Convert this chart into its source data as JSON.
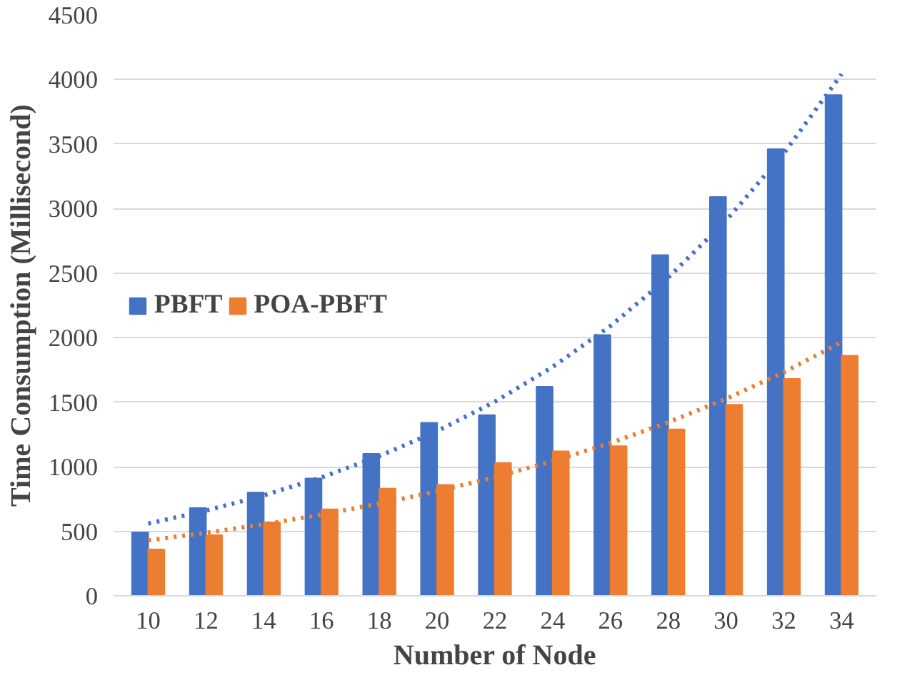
{
  "chart_data": {
    "type": "bar",
    "xlabel": "Number of Node",
    "ylabel": "Time Consumption (Millisecond)",
    "categories": [
      "10",
      "12",
      "14",
      "16",
      "18",
      "20",
      "22",
      "24",
      "26",
      "28",
      "30",
      "32",
      "34"
    ],
    "series": [
      {
        "name": "PBFT",
        "color": "#4472c4",
        "values": [
          490,
          680,
          800,
          910,
          1100,
          1340,
          1400,
          1620,
          2020,
          2640,
          3090,
          3460,
          3880
        ]
      },
      {
        "name": "POA-PBFT",
        "color": "#ed7d31",
        "values": [
          360,
          470,
          570,
          670,
          830,
          860,
          1030,
          1120,
          1160,
          1290,
          1480,
          1680,
          1860
        ]
      },
      {
        "type": "line",
        "color": "#4472c4",
        "line_style": "dotted",
        "x": [
          "10",
          "12",
          "14",
          "16",
          "18",
          "20",
          "22",
          "24",
          "26",
          "28",
          "30",
          "32",
          "34"
        ],
        "values": [
          560,
          660,
          778,
          918,
          1082,
          1276,
          1504,
          1774,
          2091,
          2466,
          2907,
          3428,
          4042
        ]
      },
      {
        "type": "line",
        "color": "#ed7d31",
        "line_style": "dotted",
        "x": [
          "10",
          "12",
          "14",
          "16",
          "18",
          "20",
          "22",
          "24",
          "26",
          "28",
          "30",
          "32",
          "34"
        ],
        "values": [
          430,
          488,
          554,
          629,
          714,
          810,
          919,
          1043,
          1184,
          1344,
          1526,
          1732,
          1966
        ]
      }
    ],
    "ylim": [
      0,
      4500
    ],
    "yticks": [
      0,
      500,
      1000,
      1500,
      2000,
      2500,
      3000,
      3500,
      4000,
      4500
    ],
    "grid": "y",
    "legend": "left"
  }
}
